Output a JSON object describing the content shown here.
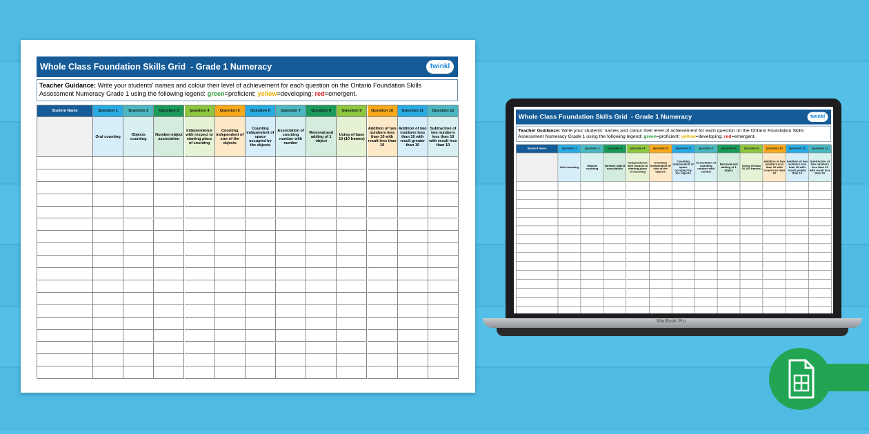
{
  "document": {
    "title": "Whole Class Foundation Skills Grid  - Grade 1 Numeracy",
    "logo": "twinkl",
    "guidance": {
      "label": "Teacher Guidance:",
      "text": "Write your students' names and colour their level of achievement for each question on the Ontario Foundation Skills Assessment Numeracy Grade 1 using the following legend:",
      "legend": [
        {
          "word": "green",
          "meaning": "=proficient;"
        },
        {
          "word": "yellow",
          "meaning": "=developing;"
        },
        {
          "word": "red",
          "meaning": "=emergent."
        }
      ]
    },
    "table": {
      "name_header": "Student Name",
      "questions": [
        {
          "label": "Question 1",
          "description": "Oral counting"
        },
        {
          "label": "Question 2",
          "description": "Objects counting"
        },
        {
          "label": "Question 3",
          "description": "Number-object association"
        },
        {
          "label": "Question 4",
          "description": "Independence with respect to starting place of counting"
        },
        {
          "label": "Question 5",
          "description": "Counting independent of size of the objects"
        },
        {
          "label": "Question 6",
          "description": "Counting independent of space occupied by the objects"
        },
        {
          "label": "Question 7",
          "description": "Association of counting number with number"
        },
        {
          "label": "Question 8",
          "description": "Removal and adding of 1 object"
        },
        {
          "label": "Question 9",
          "description": "Using of base 10 (10 frames)"
        },
        {
          "label": "Question 10",
          "description": "Addition of two numbers less than 10 with result less than 10"
        },
        {
          "label": "Question 11",
          "description": "Addition of two numbers less than 10 with result greater than 10"
        },
        {
          "label": "Question 12",
          "description": "Subtraction of two numbers less than 10 with result less than 10"
        }
      ]
    },
    "laptop_label": "MacBook Pro"
  }
}
